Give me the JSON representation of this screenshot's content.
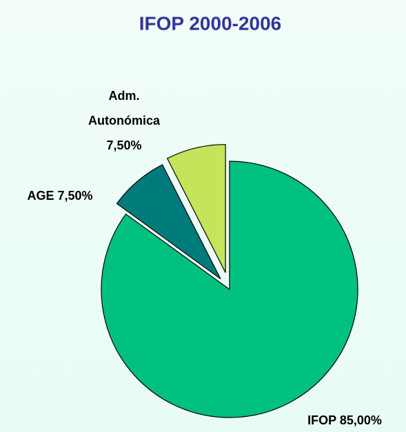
{
  "chart_data": {
    "type": "pie",
    "title": "IFOP 2000-2006",
    "categories": [
      "IFOP",
      "AGE",
      "Adm. Autonómica"
    ],
    "values": [
      85,
      7.5,
      7.5
    ],
    "value_labels": [
      "85,00%",
      "7,50%",
      "7,50%"
    ],
    "colors": [
      "#00c080",
      "#007b7b",
      "#c4e45a"
    ]
  }
}
